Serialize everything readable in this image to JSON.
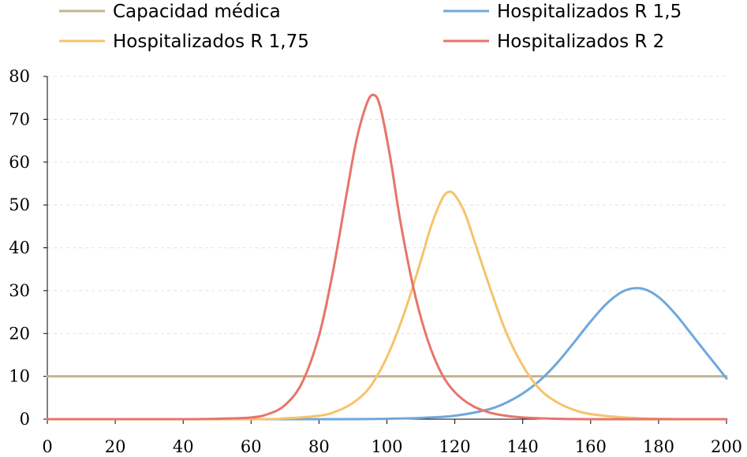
{
  "chart_data": {
    "type": "line",
    "title": "",
    "xlabel": "",
    "ylabel": "",
    "xlim": [
      0,
      200
    ],
    "ylim": [
      0,
      80
    ],
    "x_ticks": [
      "0",
      "20",
      "40",
      "60",
      "80",
      "100",
      "120",
      "140",
      "160",
      "180",
      "200"
    ],
    "y_ticks": [
      "0",
      "10",
      "20",
      "30",
      "40",
      "50",
      "60",
      "70",
      "80"
    ],
    "grid": "horizontal dashed",
    "legend_position": "top",
    "legend": [
      {
        "label": "Capacidad médica",
        "color": "#C4B48E"
      },
      {
        "label": "Hospitalizados R 1,5",
        "color": "#6FA8DC"
      },
      {
        "label": "Hospitalizados R 1,75",
        "color": "#F6C36B"
      },
      {
        "label": "Hospitalizados R 2",
        "color": "#E8746B"
      }
    ],
    "series": [
      {
        "name": "Capacidad médica",
        "color": "#C4B48E",
        "x": [
          0,
          200
        ],
        "y": [
          10,
          10
        ]
      },
      {
        "name": "Hospitalizados R 1,5",
        "color": "#6FA8DC",
        "x": [
          0,
          80,
          100,
          110,
          120,
          130,
          135,
          140,
          145,
          150,
          155,
          160,
          165,
          170,
          175,
          180,
          185,
          190,
          195,
          200
        ],
        "y": [
          0,
          0,
          0.1,
          0.3,
          0.8,
          2.3,
          3.8,
          6,
          9,
          13,
          17.8,
          22.8,
          27.2,
          30,
          30.5,
          28.5,
          24.5,
          19.5,
          14.5,
          9.5
        ]
      },
      {
        "name": "Hospitalizados R 1,75",
        "color": "#F6C36B",
        "x": [
          0,
          60,
          70,
          80,
          85,
          90,
          95,
          100,
          105,
          110,
          113,
          116,
          118,
          120,
          123,
          126,
          130,
          135,
          140,
          145,
          150,
          155,
          160,
          170,
          180,
          190,
          200
        ],
        "y": [
          0,
          0,
          0.2,
          0.8,
          1.8,
          3.8,
          7.5,
          14.5,
          24.5,
          37,
          45,
          51,
          53,
          52.3,
          48,
          41,
          31.5,
          20.5,
          12.5,
          7,
          4,
          2.2,
          1.2,
          0.4,
          0.1,
          0,
          0
        ]
      },
      {
        "name": "Hospitalizados R 2",
        "color": "#E8746B",
        "x": [
          0,
          40,
          50,
          60,
          65,
          70,
          75,
          80,
          84,
          88,
          91,
          94,
          96,
          98,
          101,
          104,
          108,
          112,
          116,
          120,
          125,
          130,
          135,
          140,
          150,
          160,
          200
        ],
        "y": [
          0,
          0,
          0.1,
          0.4,
          1.2,
          3.3,
          8.5,
          19.5,
          34,
          52,
          65,
          73.5,
          75.7,
          73,
          61,
          46,
          30,
          18.5,
          10.8,
          6.3,
          3.2,
          1.6,
          0.8,
          0.4,
          0.1,
          0,
          0
        ]
      }
    ]
  }
}
